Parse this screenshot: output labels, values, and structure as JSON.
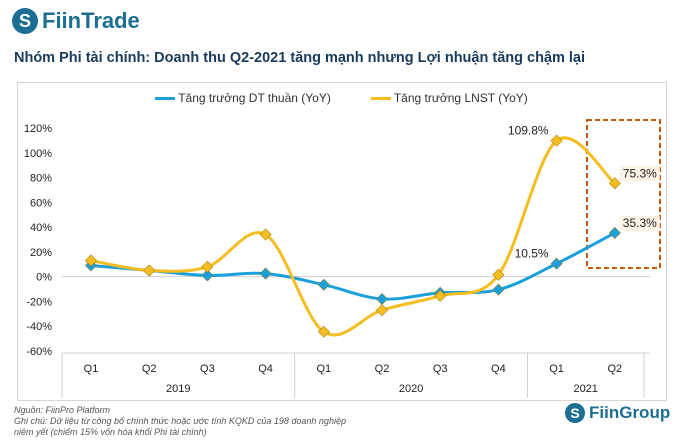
{
  "header": {
    "logo": "FiinTrade",
    "title": "Nhóm Phi tài chính: Doanh thu Q2-2021 tăng mạnh nhưng Lợi nhuận tăng chậm lại"
  },
  "chart_data": {
    "type": "line",
    "categories": [
      "Q1",
      "Q2",
      "Q3",
      "Q4",
      "Q1",
      "Q2",
      "Q3",
      "Q4",
      "Q1",
      "Q2"
    ],
    "groups": [
      {
        "label": "2019",
        "span": 4
      },
      {
        "label": "2020",
        "span": 4
      },
      {
        "label": "2021",
        "span": 2
      }
    ],
    "yticks": [
      "120%",
      "100%",
      "80%",
      "60%",
      "40%",
      "20%",
      "0%",
      "-20%",
      "-40%",
      "-60%"
    ],
    "ylim": [
      -60,
      120
    ],
    "legend": "top",
    "series": [
      {
        "name": "Tăng trưởng DT thuần (YoY)",
        "color": "#1aa0db",
        "values": [
          9,
          5,
          1,
          2.5,
          -6.5,
          -18,
          -13,
          -10.5,
          10.5,
          35.3
        ],
        "labels": {
          "8": "10.5%",
          "9": "35.3%"
        }
      },
      {
        "name": "Tăng trưởng LNST (YoY)",
        "color": "#f5bd1f",
        "values": [
          13,
          5,
          8,
          34,
          -44.5,
          -27,
          -15.5,
          1.5,
          109.8,
          75.3
        ],
        "labels": {
          "8": "109.8%",
          "9": "75.3%"
        }
      }
    ],
    "highlight_color": "#c55a11"
  },
  "footer": {
    "source": "Nguồn: FiinPro Platform",
    "note_line1": "Ghi chú: Dữ liệu từ công bố chính thức hoặc ước tính KQKD của 198 doanh nghiệp",
    "note_line2": "niêm yết (chiếm 15% vốn hóa khối Phi tài chính)",
    "logo": "FiinGroup"
  }
}
